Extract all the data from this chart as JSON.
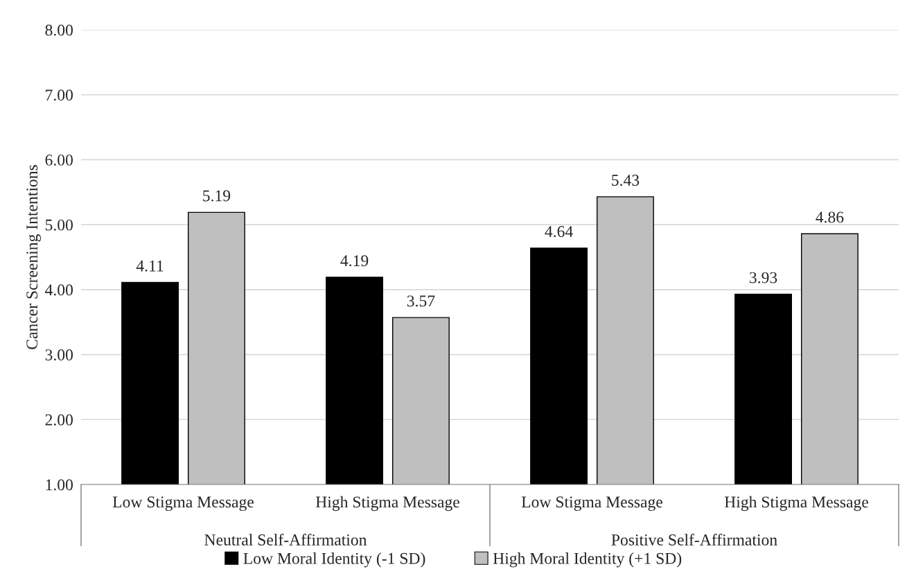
{
  "chart_data": {
    "type": "bar",
    "ylabel": "Cancer Screening Intentions",
    "categories": [
      "Low Stigma Message",
      "High Stigma Message",
      "Low Stigma Message",
      "High Stigma Message"
    ],
    "series": [
      {
        "name": "Low Moral Identity (-1 SD)",
        "color": "#000000",
        "values": [
          4.11,
          4.19,
          4.64,
          3.93
        ]
      },
      {
        "name": "High Moral Identity (+1 SD)",
        "color": "#bfbfbf",
        "values": [
          5.19,
          3.57,
          5.43,
          4.86
        ]
      }
    ],
    "ylim": [
      1,
      8
    ],
    "yticks": [
      {
        "value": 1,
        "label": "1.00"
      },
      {
        "value": 2,
        "label": "2.00"
      },
      {
        "value": 3,
        "label": "3.00"
      },
      {
        "value": 4,
        "label": "4.00"
      },
      {
        "value": 5,
        "label": "5.00"
      },
      {
        "value": 6,
        "label": "6.00"
      },
      {
        "value": 7,
        "label": "7.00"
      },
      {
        "value": 8,
        "label": "8.00"
      }
    ],
    "annotations": [
      "Neutral Self-Affirmation",
      "Positive Self-Affirmation"
    ],
    "data_labels": true,
    "grid": "y",
    "legend": "bottom"
  }
}
